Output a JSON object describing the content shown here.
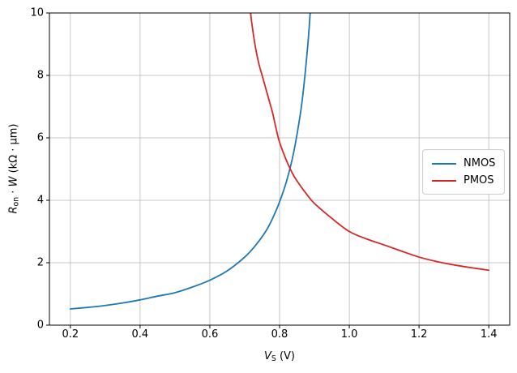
{
  "chart_data": {
    "type": "line",
    "title": "",
    "xlabel": "V_S (V)",
    "ylabel": "R_on · W (kΩ · μm)",
    "xlim": [
      0.14,
      1.46
    ],
    "ylim": [
      0,
      10
    ],
    "xticks": [
      0.2,
      0.4,
      0.6,
      0.8,
      1.0,
      1.2,
      1.4
    ],
    "yticks": [
      0,
      2,
      4,
      6,
      8,
      10
    ],
    "grid": true,
    "legend_position": "center right",
    "series": [
      {
        "name": "NMOS",
        "color": "#1f77b4",
        "x": [
          0.2,
          0.25,
          0.3,
          0.35,
          0.4,
          0.45,
          0.5,
          0.55,
          0.6,
          0.65,
          0.7,
          0.73,
          0.76,
          0.78,
          0.8,
          0.82,
          0.84,
          0.86,
          0.87,
          0.88,
          0.885,
          0.89
        ],
        "y": [
          0.52,
          0.57,
          0.63,
          0.71,
          0.81,
          0.93,
          1.04,
          1.22,
          1.44,
          1.74,
          2.18,
          2.54,
          3.0,
          3.42,
          3.95,
          4.61,
          5.51,
          6.8,
          7.7,
          8.85,
          9.55,
          10.4
        ]
      },
      {
        "name": "PMOS",
        "color": "#d62728",
        "x": [
          0.712,
          0.716,
          0.72,
          0.73,
          0.74,
          0.75,
          0.76,
          0.77,
          0.78,
          0.79,
          0.8,
          0.82,
          0.84,
          0.86,
          0.88,
          0.9,
          0.95,
          1.0,
          1.05,
          1.1,
          1.15,
          1.2,
          1.25,
          1.3,
          1.35,
          1.4
        ],
        "y": [
          10.5,
          10.1,
          9.7,
          8.95,
          8.4,
          8.0,
          7.6,
          7.2,
          6.8,
          6.3,
          5.86,
          5.27,
          4.8,
          4.46,
          4.16,
          3.9,
          3.42,
          3.0,
          2.76,
          2.57,
          2.37,
          2.18,
          2.04,
          1.93,
          1.84,
          1.76
        ]
      }
    ]
  },
  "ticks": {
    "x": [
      "0.2",
      "0.4",
      "0.6",
      "0.8",
      "1.0",
      "1.2",
      "1.4"
    ],
    "y": [
      "0",
      "2",
      "4",
      "6",
      "8",
      "10"
    ]
  },
  "labels": {
    "xlabel": {
      "symbol": "V",
      "subscript": "S",
      "unit": " (V)"
    },
    "ylabel": {
      "symbol": "R",
      "subscript": "on",
      "operator": " · ",
      "symbol2": "W",
      "unit": " (kΩ · μm)"
    }
  },
  "colors": {
    "grid": "#b8b8b8",
    "spine": "#000000",
    "background": "#ffffff",
    "legend_border": "#cccccc"
  }
}
